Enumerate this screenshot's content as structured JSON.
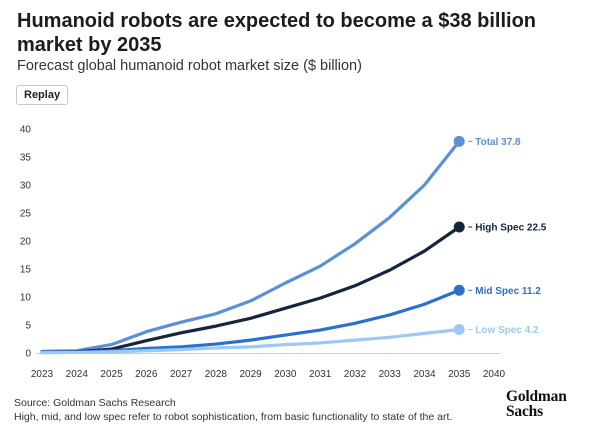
{
  "header": {
    "title": "Humanoid robots are expected to become a $38 billion market by 2035",
    "subtitle": "Forecast global humanoid robot market size ($ billion)"
  },
  "controls": {
    "replay_label": "Replay"
  },
  "footer": {
    "source": "Source: Goldman Sachs Research",
    "note": "High, mid, and low spec refer to robot sophistication, from basic functionality to state of the art.",
    "logo_line1": "Goldman",
    "logo_line2": "Sachs"
  },
  "chart_data": {
    "type": "line",
    "title": "Forecast global humanoid robot market size ($ billion)",
    "xlabel": "",
    "ylabel": "",
    "x": [
      2023,
      2024,
      2025,
      2026,
      2027,
      2028,
      2029,
      2030,
      2031,
      2032,
      2033,
      2034,
      2035
    ],
    "xticks": [
      "2023",
      "2024",
      "2025",
      "2026",
      "2027",
      "2028",
      "2029",
      "2030",
      "2031",
      "2032",
      "2033",
      "2034",
      "2035",
      "2040"
    ],
    "yticks": [
      0,
      5,
      10,
      15,
      20,
      25,
      30,
      35,
      40
    ],
    "ylim": [
      0,
      40
    ],
    "grid": false,
    "series": [
      {
        "name": "Total",
        "color": "#5b8fd6",
        "values": [
          0.3,
          0.4,
          1.5,
          3.8,
          5.5,
          7.0,
          9.3,
          12.5,
          15.5,
          19.5,
          24.2,
          30.0,
          37.8
        ],
        "end_label": "Total 37.8"
      },
      {
        "name": "High Spec",
        "color": "#15253f",
        "values": [
          0.1,
          0.2,
          0.7,
          2.2,
          3.6,
          4.8,
          6.2,
          8.0,
          9.8,
          12.0,
          14.8,
          18.2,
          22.5
        ],
        "end_label": "High Spec 22.5"
      },
      {
        "name": "Mid Spec",
        "color": "#2b6fd0",
        "values": [
          0.1,
          0.15,
          0.4,
          0.8,
          1.1,
          1.6,
          2.3,
          3.2,
          4.1,
          5.3,
          6.8,
          8.7,
          11.2
        ],
        "end_label": "Mid Spec 11.2"
      },
      {
        "name": "Low Spec",
        "color": "#9cc8f4",
        "values": [
          0.05,
          0.1,
          0.2,
          0.4,
          0.6,
          0.9,
          1.1,
          1.5,
          1.8,
          2.3,
          2.8,
          3.5,
          4.2
        ],
        "end_label": "Low Spec 4.2"
      }
    ]
  }
}
